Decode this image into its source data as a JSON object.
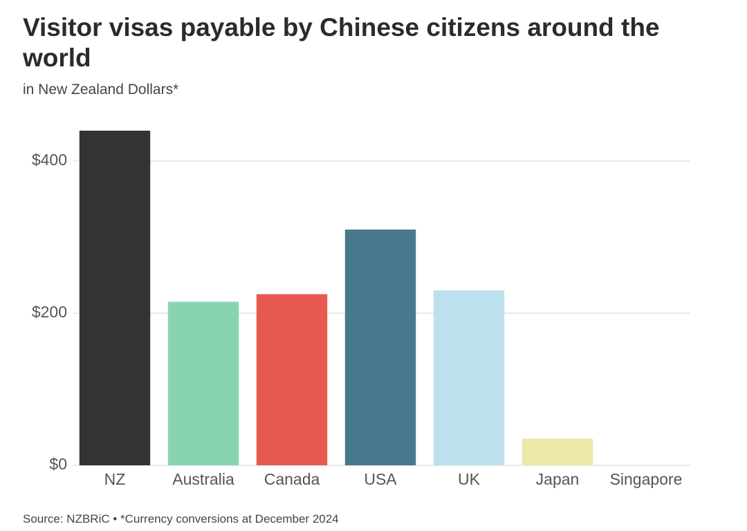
{
  "chart_data": {
    "type": "bar",
    "title": "Visitor visas payable by Chinese citizens around the world",
    "subtitle": "in New Zealand Dollars*",
    "source": "Source: NZBRiC • *Currency conversions at December 2024",
    "categories": [
      "NZ",
      "Australia",
      "Canada",
      "USA",
      "UK",
      "Japan",
      "Singapore"
    ],
    "values": [
      440,
      215,
      225,
      310,
      230,
      35,
      0
    ],
    "colors": [
      "#333333",
      "#88d4b0",
      "#e85a4f",
      "#48788e",
      "#bde0ee",
      "#ebe8a8",
      "#d9d9d9"
    ],
    "ylim": [
      0,
      440
    ],
    "yticks": [
      {
        "value": 0,
        "label": "$0"
      },
      {
        "value": 200,
        "label": "$200"
      },
      {
        "value": 400,
        "label": "$400"
      }
    ],
    "grid": true
  }
}
